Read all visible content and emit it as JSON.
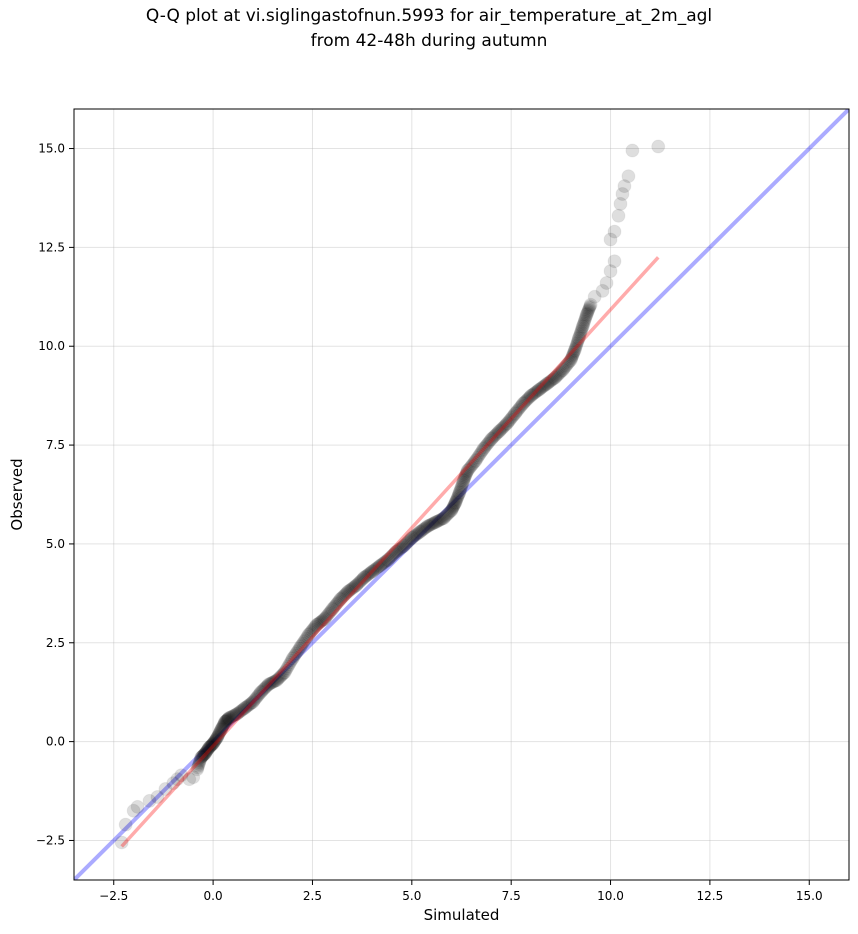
{
  "chart_data": {
    "type": "scatter",
    "title_line1": "Q-Q plot at vi.siglingastofnun.5993 for air_temperature_at_2m_agl",
    "title_line2": "from 42-48h during autumn",
    "xlabel": "Simulated",
    "ylabel": "Observed",
    "xlim": [
      -3.5,
      16.0
    ],
    "ylim": [
      -3.5,
      16.0
    ],
    "x_ticks": [
      -2.5,
      0.0,
      2.5,
      5.0,
      7.5,
      10.0,
      12.5,
      15.0
    ],
    "y_ticks": [
      -2.5,
      0.0,
      2.5,
      5.0,
      7.5,
      10.0,
      12.5,
      15.0
    ],
    "x_tick_labels": [
      "−2.5",
      "0.0",
      "2.5",
      "5.0",
      "7.5",
      "10.0",
      "12.5",
      "15.0"
    ],
    "y_tick_labels": [
      "−2.5",
      "0.0",
      "2.5",
      "5.0",
      "7.5",
      "10.0",
      "12.5",
      "15.0"
    ],
    "grid": true,
    "identity_line": {
      "color": "#0000ff",
      "from": [
        -3.5,
        -3.5
      ],
      "to": [
        16.0,
        16.0
      ]
    },
    "fit_line": {
      "color": "#ff0000",
      "from": [
        -2.3,
        -2.65
      ],
      "to": [
        11.2,
        12.25
      ]
    },
    "quantiles": [
      [
        -2.3,
        -2.55
      ],
      [
        -2.2,
        -2.1
      ],
      [
        -2.0,
        -1.75
      ],
      [
        -1.9,
        -1.65
      ],
      [
        -1.6,
        -1.5
      ],
      [
        -1.4,
        -1.4
      ],
      [
        -1.2,
        -1.2
      ],
      [
        -1.0,
        -1.05
      ],
      [
        -0.9,
        -0.95
      ],
      [
        -0.8,
        -0.85
      ],
      [
        -0.6,
        -0.95
      ],
      [
        -0.5,
        -0.9
      ],
      [
        -0.4,
        -0.7
      ],
      [
        -0.3,
        -0.4
      ],
      [
        -0.2,
        -0.3
      ],
      [
        -0.1,
        -0.15
      ],
      [
        0.0,
        -0.05
      ],
      [
        0.1,
        0.1
      ],
      [
        0.2,
        0.3
      ],
      [
        0.3,
        0.5
      ],
      [
        0.4,
        0.6
      ],
      [
        0.6,
        0.7
      ],
      [
        0.8,
        0.85
      ],
      [
        1.0,
        1.0
      ],
      [
        1.2,
        1.25
      ],
      [
        1.4,
        1.45
      ],
      [
        1.6,
        1.55
      ],
      [
        1.8,
        1.75
      ],
      [
        2.0,
        2.1
      ],
      [
        2.2,
        2.4
      ],
      [
        2.4,
        2.7
      ],
      [
        2.6,
        2.95
      ],
      [
        2.8,
        3.1
      ],
      [
        3.0,
        3.35
      ],
      [
        3.2,
        3.6
      ],
      [
        3.4,
        3.8
      ],
      [
        3.6,
        3.95
      ],
      [
        3.8,
        4.15
      ],
      [
        4.0,
        4.3
      ],
      [
        4.2,
        4.45
      ],
      [
        4.4,
        4.6
      ],
      [
        4.6,
        4.8
      ],
      [
        4.8,
        4.95
      ],
      [
        5.0,
        5.15
      ],
      [
        5.2,
        5.3
      ],
      [
        5.4,
        5.45
      ],
      [
        5.6,
        5.55
      ],
      [
        5.8,
        5.65
      ],
      [
        6.0,
        5.85
      ],
      [
        6.1,
        6.05
      ],
      [
        6.2,
        6.3
      ],
      [
        6.3,
        6.6
      ],
      [
        6.4,
        6.85
      ],
      [
        6.6,
        7.1
      ],
      [
        6.8,
        7.4
      ],
      [
        7.0,
        7.65
      ],
      [
        7.2,
        7.85
      ],
      [
        7.4,
        8.05
      ],
      [
        7.6,
        8.3
      ],
      [
        7.8,
        8.55
      ],
      [
        8.0,
        8.75
      ],
      [
        8.2,
        8.9
      ],
      [
        8.4,
        9.05
      ],
      [
        8.6,
        9.2
      ],
      [
        8.8,
        9.4
      ],
      [
        9.0,
        9.65
      ],
      [
        9.1,
        9.9
      ],
      [
        9.2,
        10.2
      ],
      [
        9.3,
        10.5
      ],
      [
        9.4,
        10.8
      ],
      [
        9.5,
        11.05
      ],
      [
        9.6,
        11.25
      ],
      [
        9.8,
        11.4
      ],
      [
        9.9,
        11.6
      ],
      [
        10.0,
        11.9
      ],
      [
        10.1,
        12.15
      ],
      [
        10.0,
        12.7
      ],
      [
        10.1,
        12.9
      ],
      [
        10.2,
        13.3
      ],
      [
        10.25,
        13.6
      ],
      [
        10.3,
        13.85
      ],
      [
        10.35,
        14.05
      ],
      [
        10.45,
        14.3
      ],
      [
        10.55,
        14.95
      ],
      [
        11.2,
        15.05
      ]
    ]
  }
}
